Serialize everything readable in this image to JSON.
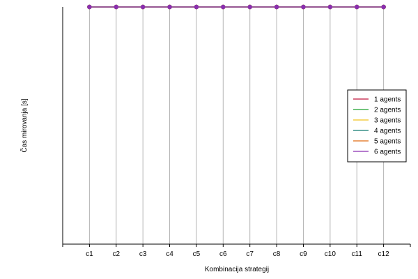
{
  "chart_data": {
    "type": "line",
    "title": "",
    "xlabel": "Kombinacija strategij",
    "ylabel": "Čas mirovanja [s]",
    "categories": [
      "c1",
      "c2",
      "c3",
      "c4",
      "c5",
      "c6",
      "c7",
      "c8",
      "c9",
      "c10",
      "c11",
      "c12"
    ],
    "ylim": [
      0,
      1
    ],
    "grid": "vertical",
    "legend_position": "right",
    "series": [
      {
        "name": "1 agents",
        "color": "#c0143c",
        "values": [
          1,
          1,
          1,
          1,
          1,
          1,
          1,
          1,
          1,
          1,
          1,
          1
        ]
      },
      {
        "name": "2 agents",
        "color": "#1fa02f",
        "values": [
          1,
          1,
          1,
          1,
          1,
          1,
          1,
          1,
          1,
          1,
          1,
          1
        ]
      },
      {
        "name": "3 agents",
        "color": "#f0c21e",
        "values": [
          1,
          1,
          1,
          1,
          1,
          1,
          1,
          1,
          1,
          1,
          1,
          1
        ]
      },
      {
        "name": "4 agents",
        "color": "#127a70",
        "values": [
          1,
          1,
          1,
          1,
          1,
          1,
          1,
          1,
          1,
          1,
          1,
          1
        ]
      },
      {
        "name": "5 agents",
        "color": "#e06a10",
        "values": [
          1,
          1,
          1,
          1,
          1,
          1,
          1,
          1,
          1,
          1,
          1,
          1
        ]
      },
      {
        "name": "6 agents",
        "color": "#8a2fb0",
        "values": [
          1,
          1,
          1,
          1,
          1,
          1,
          1,
          1,
          1,
          1,
          1,
          1
        ]
      }
    ]
  }
}
